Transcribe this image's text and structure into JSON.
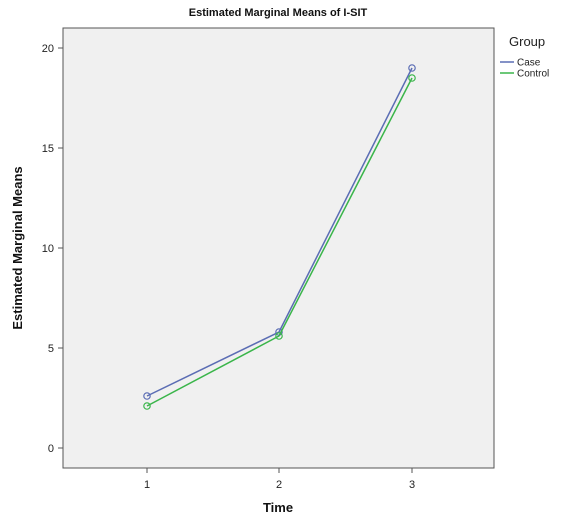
{
  "chart_data": {
    "type": "line",
    "title": "Estimated Marginal Means of I-SIT",
    "xlabel": "Time",
    "ylabel": "Estimated Marginal Means",
    "categories": [
      "1",
      "2",
      "3"
    ],
    "ylim": [
      -1,
      21
    ],
    "yticks": [
      "0",
      "5",
      "10",
      "15",
      "20"
    ],
    "grid": false,
    "legend": {
      "title": "Group",
      "placement": "right"
    },
    "series": [
      {
        "name": "Case",
        "values": [
          2.6,
          5.8,
          19.0
        ],
        "color": "#5b6db4"
      },
      {
        "name": "Control",
        "values": [
          2.1,
          5.6,
          18.5
        ],
        "color": "#3ab54a"
      }
    ],
    "plot_background": "#f0f0f0"
  }
}
